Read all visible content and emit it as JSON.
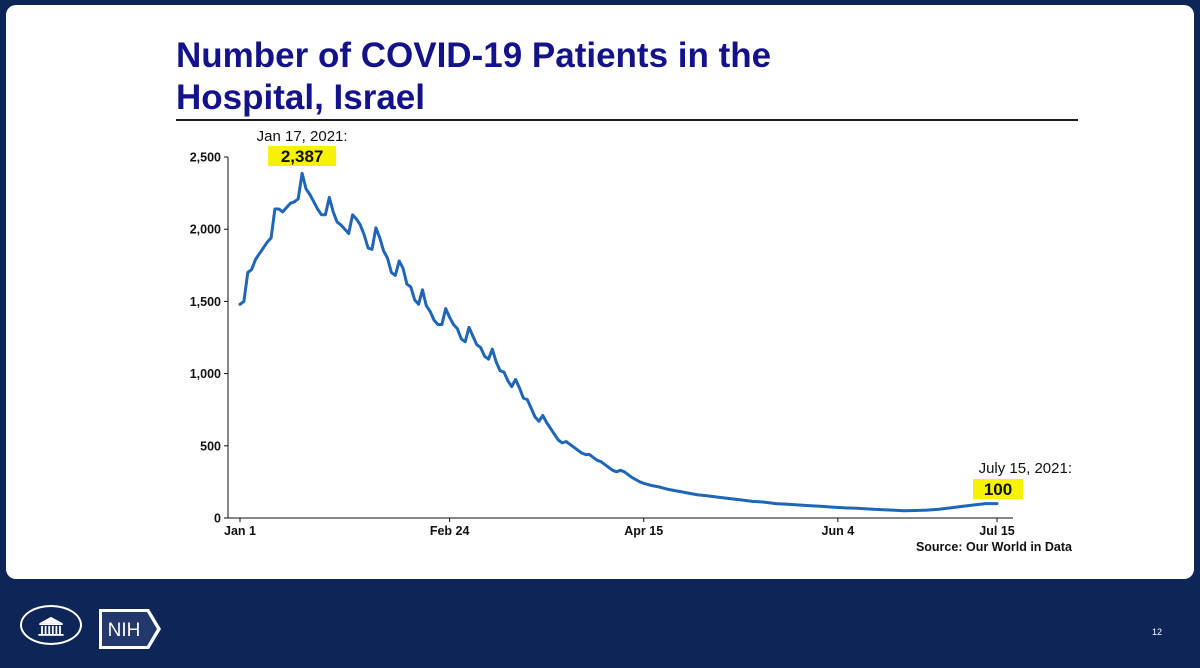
{
  "slide": {
    "title_line1": "Number of COVID-19 Patients in the",
    "title_line2": "Hospital, Israel",
    "page_number": "12",
    "nih_logo_text": "NIH"
  },
  "colors": {
    "background": "#0e2657",
    "title": "#14128a",
    "line": "#1f66b8",
    "highlight": "#f7f200"
  },
  "chart_data": {
    "type": "line",
    "title": "",
    "xlabel": "",
    "ylabel": "",
    "ylim": [
      0,
      2500
    ],
    "y_ticks": [
      0,
      500,
      1000,
      1500,
      2000,
      2500
    ],
    "y_tick_labels": [
      "0",
      "500",
      "1,000",
      "1,500",
      "2,000",
      "2,500"
    ],
    "x_ticks": [
      "2021-01-01",
      "2021-02-24",
      "2021-04-15",
      "2021-06-04",
      "2021-07-15"
    ],
    "x_tick_labels": [
      "Jan 1",
      "Feb 24",
      "Apr 15",
      "Jun 4",
      "Jul 15"
    ],
    "xlim": [
      "2021-01-01",
      "2021-07-15"
    ],
    "grid": false,
    "series": [
      {
        "name": "",
        "color": "#1f66b8",
        "points": [
          [
            "2021-01-01",
            1480
          ],
          [
            "2021-01-02",
            1500
          ],
          [
            "2021-01-03",
            1700
          ],
          [
            "2021-01-04",
            1720
          ],
          [
            "2021-01-05",
            1790
          ],
          [
            "2021-01-06",
            1830
          ],
          [
            "2021-01-07",
            1870
          ],
          [
            "2021-01-08",
            1910
          ],
          [
            "2021-01-09",
            1940
          ],
          [
            "2021-01-10",
            2140
          ],
          [
            "2021-01-11",
            2140
          ],
          [
            "2021-01-12",
            2120
          ],
          [
            "2021-01-13",
            2150
          ],
          [
            "2021-01-14",
            2180
          ],
          [
            "2021-01-15",
            2190
          ],
          [
            "2021-01-16",
            2210
          ],
          [
            "2021-01-17",
            2387
          ],
          [
            "2021-01-18",
            2280
          ],
          [
            "2021-01-19",
            2240
          ],
          [
            "2021-01-20",
            2190
          ],
          [
            "2021-01-21",
            2140
          ],
          [
            "2021-01-22",
            2100
          ],
          [
            "2021-01-23",
            2100
          ],
          [
            "2021-01-24",
            2220
          ],
          [
            "2021-01-25",
            2120
          ],
          [
            "2021-01-26",
            2050
          ],
          [
            "2021-01-27",
            2030
          ],
          [
            "2021-01-28",
            2000
          ],
          [
            "2021-01-29",
            1970
          ],
          [
            "2021-01-30",
            2100
          ],
          [
            "2021-01-31",
            2070
          ],
          [
            "2021-02-01",
            2030
          ],
          [
            "2021-02-02",
            1960
          ],
          [
            "2021-02-03",
            1870
          ],
          [
            "2021-02-04",
            1860
          ],
          [
            "2021-02-05",
            2010
          ],
          [
            "2021-02-06",
            1940
          ],
          [
            "2021-02-07",
            1850
          ],
          [
            "2021-02-08",
            1800
          ],
          [
            "2021-02-09",
            1700
          ],
          [
            "2021-02-10",
            1680
          ],
          [
            "2021-02-11",
            1780
          ],
          [
            "2021-02-12",
            1730
          ],
          [
            "2021-02-13",
            1620
          ],
          [
            "2021-02-14",
            1600
          ],
          [
            "2021-02-15",
            1510
          ],
          [
            "2021-02-16",
            1480
          ],
          [
            "2021-02-17",
            1580
          ],
          [
            "2021-02-18",
            1470
          ],
          [
            "2021-02-19",
            1430
          ],
          [
            "2021-02-20",
            1370
          ],
          [
            "2021-02-21",
            1340
          ],
          [
            "2021-02-22",
            1340
          ],
          [
            "2021-02-23",
            1450
          ],
          [
            "2021-02-24",
            1390
          ],
          [
            "2021-02-25",
            1340
          ],
          [
            "2021-02-26",
            1310
          ],
          [
            "2021-02-27",
            1240
          ],
          [
            "2021-02-28",
            1220
          ],
          [
            "2021-03-01",
            1320
          ],
          [
            "2021-03-02",
            1260
          ],
          [
            "2021-03-03",
            1200
          ],
          [
            "2021-03-04",
            1180
          ],
          [
            "2021-03-05",
            1120
          ],
          [
            "2021-03-06",
            1100
          ],
          [
            "2021-03-07",
            1170
          ],
          [
            "2021-03-08",
            1080
          ],
          [
            "2021-03-09",
            1020
          ],
          [
            "2021-03-10",
            1010
          ],
          [
            "2021-03-11",
            950
          ],
          [
            "2021-03-12",
            910
          ],
          [
            "2021-03-13",
            960
          ],
          [
            "2021-03-14",
            900
          ],
          [
            "2021-03-15",
            830
          ],
          [
            "2021-03-16",
            820
          ],
          [
            "2021-03-17",
            760
          ],
          [
            "2021-03-18",
            700
          ],
          [
            "2021-03-19",
            670
          ],
          [
            "2021-03-20",
            710
          ],
          [
            "2021-03-21",
            660
          ],
          [
            "2021-03-22",
            620
          ],
          [
            "2021-03-23",
            580
          ],
          [
            "2021-03-24",
            540
          ],
          [
            "2021-03-25",
            520
          ],
          [
            "2021-03-26",
            530
          ],
          [
            "2021-03-27",
            510
          ],
          [
            "2021-03-28",
            490
          ],
          [
            "2021-03-29",
            470
          ],
          [
            "2021-03-30",
            450
          ],
          [
            "2021-03-31",
            440
          ],
          [
            "2021-04-01",
            440
          ],
          [
            "2021-04-02",
            420
          ],
          [
            "2021-04-03",
            400
          ],
          [
            "2021-04-04",
            390
          ],
          [
            "2021-04-05",
            370
          ],
          [
            "2021-04-06",
            350
          ],
          [
            "2021-04-07",
            330
          ],
          [
            "2021-04-08",
            320
          ],
          [
            "2021-04-09",
            330
          ],
          [
            "2021-04-10",
            320
          ],
          [
            "2021-04-11",
            300
          ],
          [
            "2021-04-12",
            280
          ],
          [
            "2021-04-13",
            265
          ],
          [
            "2021-04-14",
            250
          ],
          [
            "2021-04-15",
            240
          ],
          [
            "2021-04-17",
            225
          ],
          [
            "2021-04-19",
            215
          ],
          [
            "2021-04-21",
            200
          ],
          [
            "2021-04-23",
            190
          ],
          [
            "2021-04-25",
            180
          ],
          [
            "2021-04-27",
            170
          ],
          [
            "2021-04-29",
            160
          ],
          [
            "2021-05-01",
            155
          ],
          [
            "2021-05-04",
            145
          ],
          [
            "2021-05-07",
            135
          ],
          [
            "2021-05-10",
            125
          ],
          [
            "2021-05-13",
            115
          ],
          [
            "2021-05-16",
            110
          ],
          [
            "2021-05-19",
            100
          ],
          [
            "2021-05-22",
            95
          ],
          [
            "2021-05-25",
            90
          ],
          [
            "2021-05-28",
            85
          ],
          [
            "2021-05-31",
            80
          ],
          [
            "2021-06-03",
            75
          ],
          [
            "2021-06-06",
            70
          ],
          [
            "2021-06-09",
            68
          ],
          [
            "2021-06-12",
            62
          ],
          [
            "2021-06-15",
            58
          ],
          [
            "2021-06-18",
            55
          ],
          [
            "2021-06-21",
            50
          ],
          [
            "2021-06-24",
            52
          ],
          [
            "2021-06-27",
            55
          ],
          [
            "2021-06-30",
            60
          ],
          [
            "2021-07-03",
            70
          ],
          [
            "2021-07-06",
            80
          ],
          [
            "2021-07-09",
            90
          ],
          [
            "2021-07-12",
            100
          ],
          [
            "2021-07-15",
            100
          ]
        ]
      }
    ],
    "annotations": [
      {
        "x": "2021-01-17",
        "y": 2387,
        "label": "Jan 17, 2021:",
        "value_label": "2,387"
      },
      {
        "x": "2021-07-15",
        "y": 100,
        "label": "July 15, 2021:",
        "value_label": "100"
      }
    ],
    "source": "Source: Our World in Data"
  }
}
